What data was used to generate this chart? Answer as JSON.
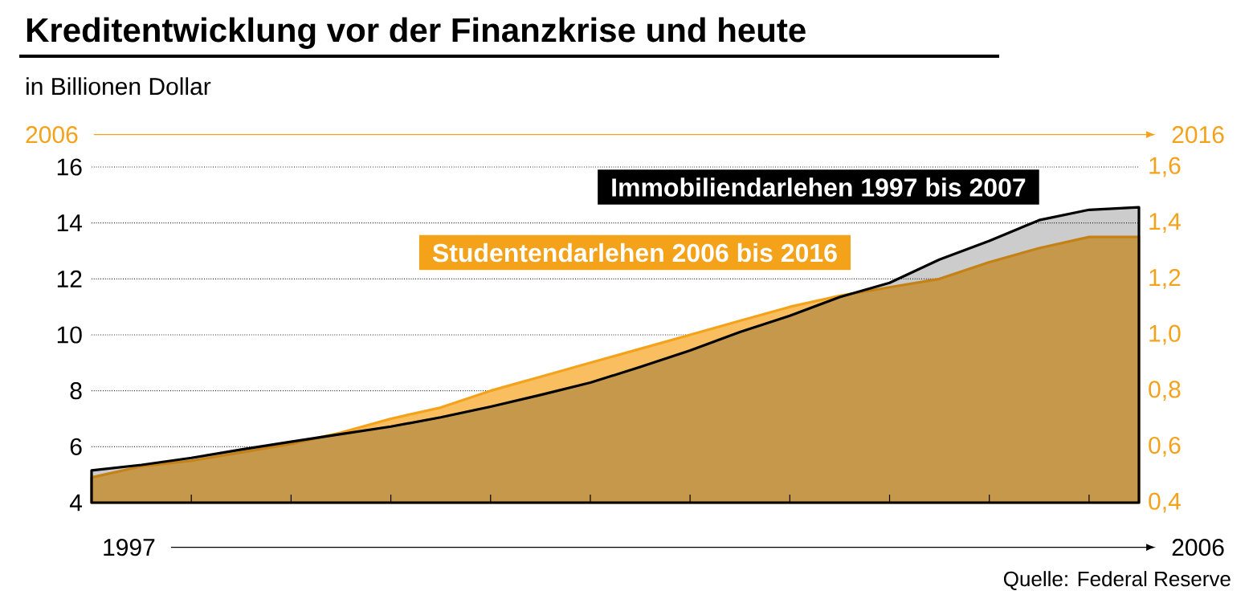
{
  "chart_data": {
    "type": "area",
    "title": "Kreditentwicklung vor der Finanzkrise und heute",
    "ylabel": "in Billionen Dollar",
    "annotations": [
      "2006",
      "2016",
      "1997",
      "2006",
      "Quelle: Federal Reserve"
    ],
    "categories": [
      null,
      null,
      null,
      null,
      null,
      null,
      null,
      null,
      null,
      null,
      null,
      null,
      null,
      null,
      null,
      null,
      null,
      null,
      null,
      null,
      null,
      null
    ],
    "series": [
      {
        "name": "Immobiliendarlehen 1997 bis 2007",
        "color": "#000000",
        "values": [
          5.15,
          5.35,
          5.6,
          5.9,
          6.18,
          6.45,
          6.72,
          7.05,
          7.43,
          7.85,
          8.29,
          8.85,
          9.44,
          10.1,
          10.68,
          11.35,
          11.86,
          12.69,
          13.36,
          14.1,
          14.47,
          14.56
        ]
      },
      {
        "name": "Studentendarlehen 2006 bis 2016",
        "color": "#f5a21b",
        "axis": "y2",
        "values": [
          0.49,
          0.53,
          0.55,
          0.58,
          0.61,
          0.65,
          0.7,
          0.74,
          0.8,
          0.85,
          0.9,
          0.95,
          1.0,
          1.05,
          1.1,
          1.14,
          1.17,
          1.2,
          1.26,
          1.31,
          1.35,
          1.35
        ]
      }
    ],
    "ylim": [
      4,
      16
    ],
    "yticks": [
      4,
      6,
      8,
      10,
      12,
      14,
      16
    ],
    "y2lim": [
      0.4,
      1.6
    ],
    "y2ticks": [
      {
        "value": 0.4,
        "label": "0,4"
      },
      {
        "value": 0.6,
        "label": "0,6"
      },
      {
        "value": 0.8,
        "label": "0,8"
      },
      {
        "value": 1.0,
        "label": "1,0"
      },
      {
        "value": 1.2,
        "label": "1,2"
      },
      {
        "value": 1.4,
        "label": "1,4"
      },
      {
        "value": 1.6,
        "label": "1,6"
      }
    ],
    "grid": "y"
  }
}
